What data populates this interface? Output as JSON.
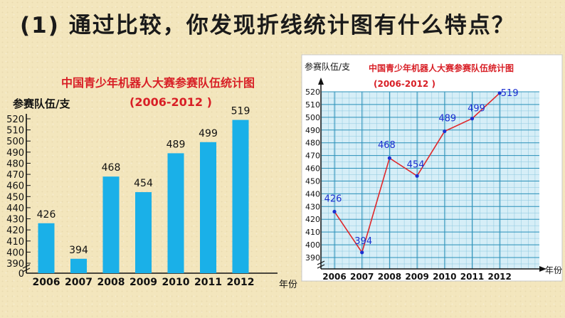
{
  "question": "(1) 通过比较，你发现折线统计图有什么特点？",
  "colors": {
    "bar": "#1ab0e8",
    "line": "#e0272a",
    "point": "#1b2fd1",
    "grid": "#2a90b8",
    "title": "#d81f26"
  },
  "chart_data": [
    {
      "type": "bar",
      "title": "中国青少年机器人大赛参赛队伍统计图",
      "subtitle": "(2006-2012 )",
      "ylabel": "参赛队伍/支",
      "xlabel": "年份",
      "categories": [
        "2006",
        "2007",
        "2008",
        "2009",
        "2010",
        "2011",
        "2012"
      ],
      "values": [
        426,
        394,
        468,
        454,
        489,
        499,
        519
      ],
      "yticks": [
        "0",
        "390",
        "400",
        "410",
        "420",
        "430",
        "440",
        "450",
        "460",
        "470",
        "480",
        "490",
        "500",
        "510",
        "520"
      ],
      "ylim": [
        390,
        520
      ],
      "axis_break": true,
      "grid": false
    },
    {
      "type": "line",
      "title": "中国青少年机器人大赛参赛队伍统计图",
      "subtitle": "(2006-2012 )",
      "ylabel": "参赛队伍/支",
      "xlabel": "年份",
      "categories": [
        "2006",
        "2007",
        "2008",
        "2009",
        "2010",
        "2011",
        "2012"
      ],
      "values": [
        426,
        394,
        468,
        454,
        489,
        499,
        519
      ],
      "yticks": [
        "390",
        "400",
        "410",
        "420",
        "430",
        "440",
        "450",
        "460",
        "470",
        "480",
        "490",
        "500",
        "510",
        "520"
      ],
      "ylim": [
        390,
        520
      ],
      "axis_break": true,
      "grid": true
    }
  ]
}
